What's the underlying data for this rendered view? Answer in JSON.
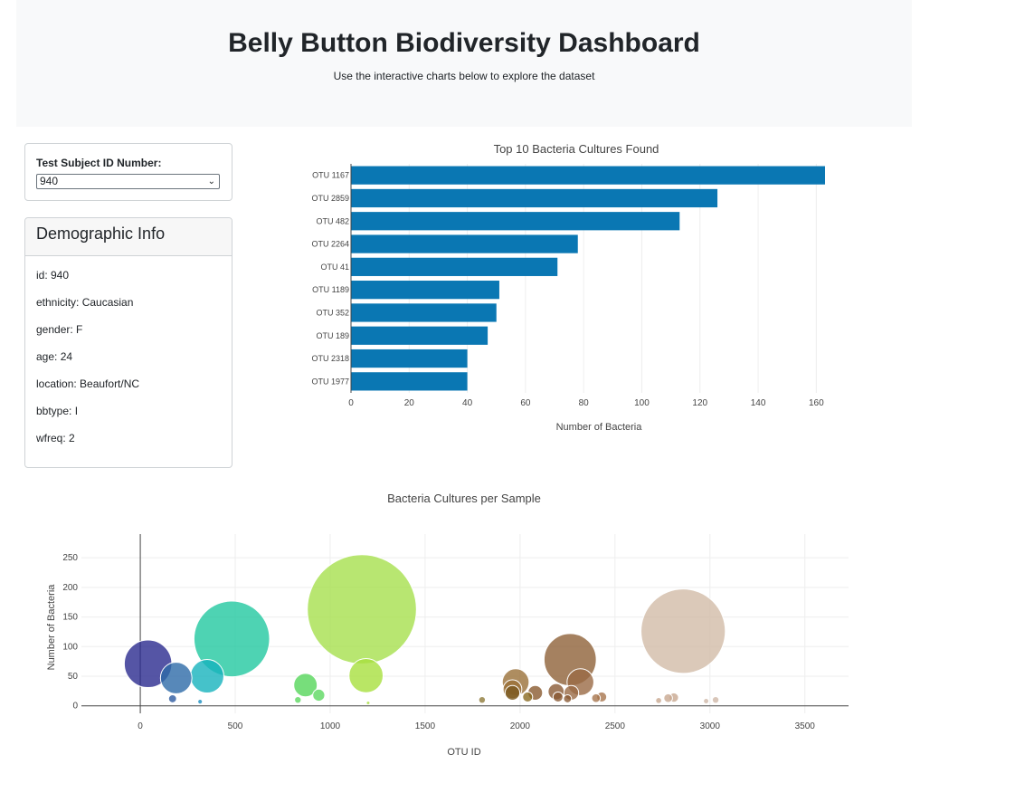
{
  "header": {
    "title": "Belly Button Biodiversity Dashboard",
    "subtitle": "Use the interactive charts below to explore the dataset"
  },
  "selector": {
    "label": "Test Subject ID Number:",
    "selected": "940",
    "icon": "chevron-down-icon"
  },
  "demographics": {
    "title": "Demographic Info",
    "items": [
      "id: 940",
      "ethnicity: Caucasian",
      "gender: F",
      "age: 24",
      "location: Beaufort/NC",
      "bbtype: I",
      "wfreq: 2"
    ]
  },
  "colors": {
    "bar": "#0a77b3",
    "grid": "#eeeeee",
    "axis": "#444444"
  },
  "chart_data": [
    {
      "type": "bar",
      "orientation": "horizontal",
      "title": "Top 10 Bacteria Cultures Found",
      "xlabel": "Number of Bacteria",
      "ylabel": "",
      "categories": [
        "OTU 1167",
        "OTU 2859",
        "OTU 482",
        "OTU 2264",
        "OTU 41",
        "OTU 1189",
        "OTU 352",
        "OTU 189",
        "OTU 2318",
        "OTU 1977"
      ],
      "values": [
        163,
        126,
        113,
        78,
        71,
        51,
        50,
        47,
        40,
        40
      ],
      "xlim": [
        0,
        163
      ],
      "xticks": [
        0,
        20,
        40,
        60,
        80,
        100,
        120,
        140,
        160
      ],
      "grid": true
    },
    {
      "type": "scatter",
      "title": "Bacteria Cultures per Sample",
      "xlabel": "OTU ID",
      "ylabel": "Number of Bacteria",
      "xlim": [
        -310,
        3730
      ],
      "ylim": [
        -5,
        290
      ],
      "xticks": [
        0,
        500,
        1000,
        1500,
        2000,
        2500,
        3000,
        3500
      ],
      "yticks": [
        0,
        50,
        100,
        150,
        200,
        250
      ],
      "grid": true,
      "marker_size": "proportional to value",
      "points": [
        {
          "x": 41,
          "y": 71,
          "color": "#2a2a8f"
        },
        {
          "x": 189,
          "y": 47,
          "color": "#2d6aa8"
        },
        {
          "x": 170,
          "y": 12,
          "color": "#2d5aa0"
        },
        {
          "x": 352,
          "y": 50,
          "color": "#17b3bd"
        },
        {
          "x": 315,
          "y": 7,
          "color": "#1a8fc0"
        },
        {
          "x": 482,
          "y": 113,
          "color": "#22c8a0"
        },
        {
          "x": 870,
          "y": 35,
          "color": "#55d65a"
        },
        {
          "x": 940,
          "y": 18,
          "color": "#5cd860"
        },
        {
          "x": 830,
          "y": 10,
          "color": "#5cd860"
        },
        {
          "x": 1167,
          "y": 163,
          "color": "#a6e04e"
        },
        {
          "x": 1189,
          "y": 51,
          "color": "#a8e03e"
        },
        {
          "x": 1200,
          "y": 5,
          "color": "#a8e03e"
        },
        {
          "x": 1800,
          "y": 10,
          "color": "#8f7a3a"
        },
        {
          "x": 1977,
          "y": 40,
          "color": "#9a7038"
        },
        {
          "x": 1960,
          "y": 28,
          "color": "#9a7038"
        },
        {
          "x": 1960,
          "y": 22,
          "color": "#7a5a20"
        },
        {
          "x": 2040,
          "y": 15,
          "color": "#8a6a20"
        },
        {
          "x": 2080,
          "y": 22,
          "color": "#8a5a30"
        },
        {
          "x": 2264,
          "y": 78,
          "color": "#8f6238"
        },
        {
          "x": 2318,
          "y": 40,
          "color": "#9a6a45"
        },
        {
          "x": 2190,
          "y": 24,
          "color": "#8a5a35"
        },
        {
          "x": 2200,
          "y": 15,
          "color": "#8a5a35"
        },
        {
          "x": 2270,
          "y": 22,
          "color": "#9a6a45"
        },
        {
          "x": 2250,
          "y": 12,
          "color": "#8a5a35"
        },
        {
          "x": 2400,
          "y": 13,
          "color": "#a8764e"
        },
        {
          "x": 2430,
          "y": 15,
          "color": "#a8764e"
        },
        {
          "x": 2859,
          "y": 126,
          "color": "#d2bca8"
        },
        {
          "x": 2780,
          "y": 13,
          "color": "#c8a890"
        },
        {
          "x": 2810,
          "y": 14,
          "color": "#c8a890"
        },
        {
          "x": 2730,
          "y": 9,
          "color": "#c8a890"
        },
        {
          "x": 2980,
          "y": 8,
          "color": "#d0b8a8"
        },
        {
          "x": 3030,
          "y": 10,
          "color": "#d0b8a8"
        }
      ]
    }
  ]
}
